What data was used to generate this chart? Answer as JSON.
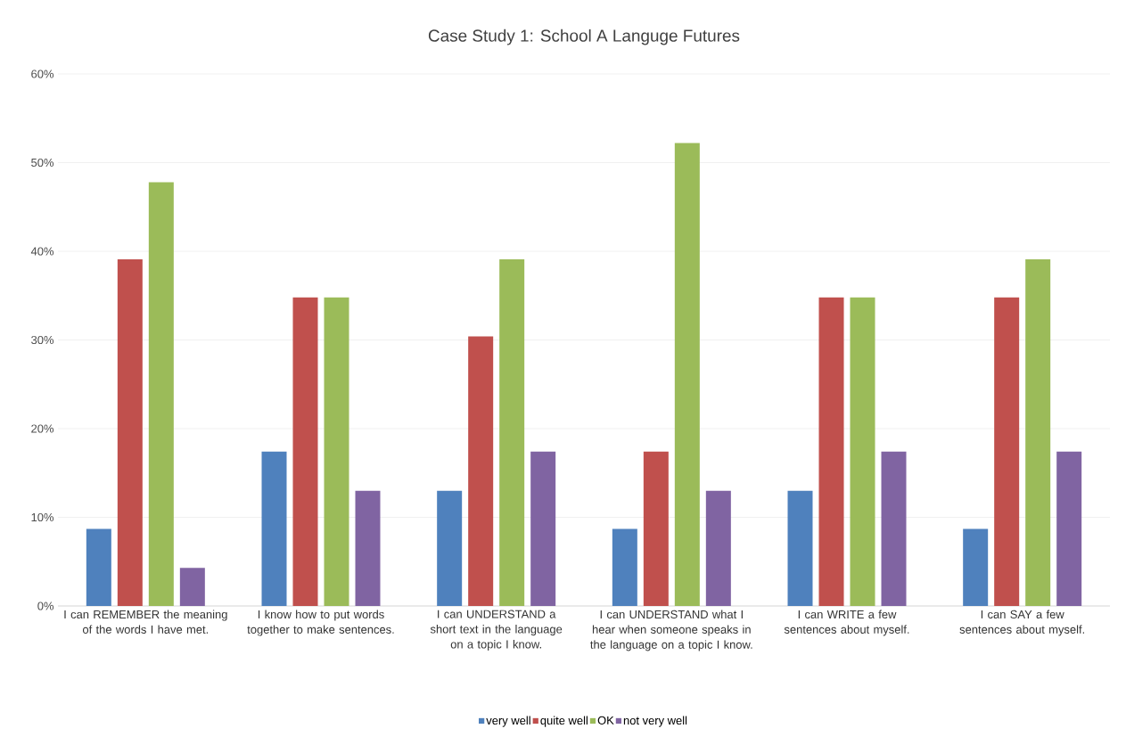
{
  "chart_data": {
    "type": "bar",
    "title": "Case Study 1: School A Languge Futures",
    "categories": [
      "I can REMEMBER the meaning of the words I have met.",
      "I know how to put words together to make sentences.",
      "I can UNDERSTAND a short text in the language on a topic I know.",
      "I can UNDERSTAND what I hear when someone speaks in the language on a topic I know.",
      "I can WRITE a few sentences about myself.",
      "I can SAY a few sentences about myself."
    ],
    "series": [
      {
        "name": "very well",
        "color": "#4f81bd",
        "values": [
          8.7,
          17.4,
          13.0,
          8.7,
          13.0,
          8.7
        ]
      },
      {
        "name": "quite well",
        "color": "#c0504d",
        "values": [
          39.1,
          34.8,
          30.4,
          17.4,
          34.8,
          34.8
        ]
      },
      {
        "name": "OK",
        "color": "#9bbb59",
        "values": [
          47.8,
          34.8,
          39.1,
          52.2,
          34.8,
          39.1
        ]
      },
      {
        "name": "not very well",
        "color": "#8064a2",
        "values": [
          4.3,
          13.0,
          17.4,
          13.0,
          17.4,
          17.4
        ]
      }
    ],
    "ylim": [
      0,
      60
    ],
    "yticks": [
      {
        "value": 0,
        "label": "0%"
      },
      {
        "value": 10,
        "label": "10%"
      },
      {
        "value": 20,
        "label": "20%"
      },
      {
        "value": 30,
        "label": "30%"
      },
      {
        "value": 40,
        "label": "40%"
      },
      {
        "value": 50,
        "label": "50%"
      },
      {
        "value": 60,
        "label": "60%"
      }
    ],
    "grid": "y",
    "legend": "bottom"
  }
}
